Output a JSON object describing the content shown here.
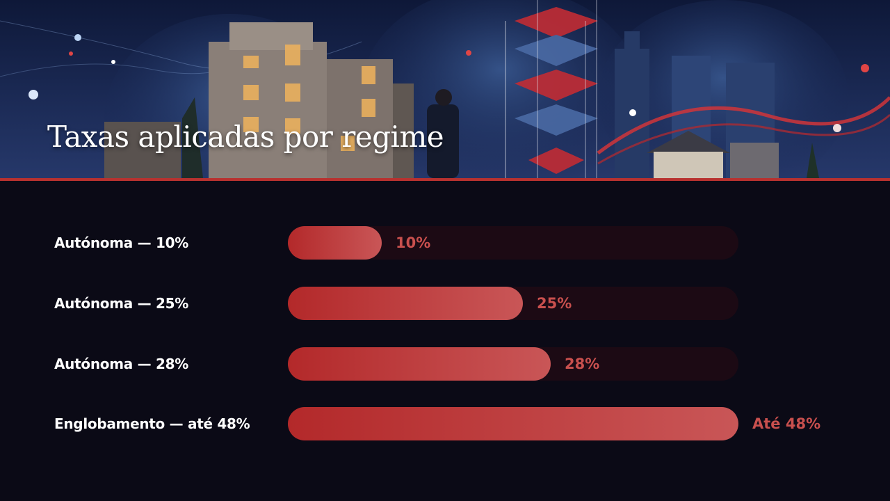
{
  "title": "Taxas aplicadas por regime",
  "colors": {
    "background": "#0b0a16",
    "accent": "#b8312f",
    "bar_start": "#b3292a",
    "bar_end": "#c95657",
    "track": "#1c0a14",
    "value_text": "#c9504e"
  },
  "chart_data": {
    "type": "bar",
    "orientation": "horizontal",
    "xlim": [
      0,
      48
    ],
    "grid": false,
    "categories": [
      "Autónoma — 10%",
      "Autónoma — 25%",
      "Autónoma — 28%",
      "Englobamento — até 48%"
    ],
    "values": [
      10,
      25,
      28,
      48
    ],
    "value_labels": [
      "10%",
      "25%",
      "28%",
      "Até 48%"
    ]
  }
}
